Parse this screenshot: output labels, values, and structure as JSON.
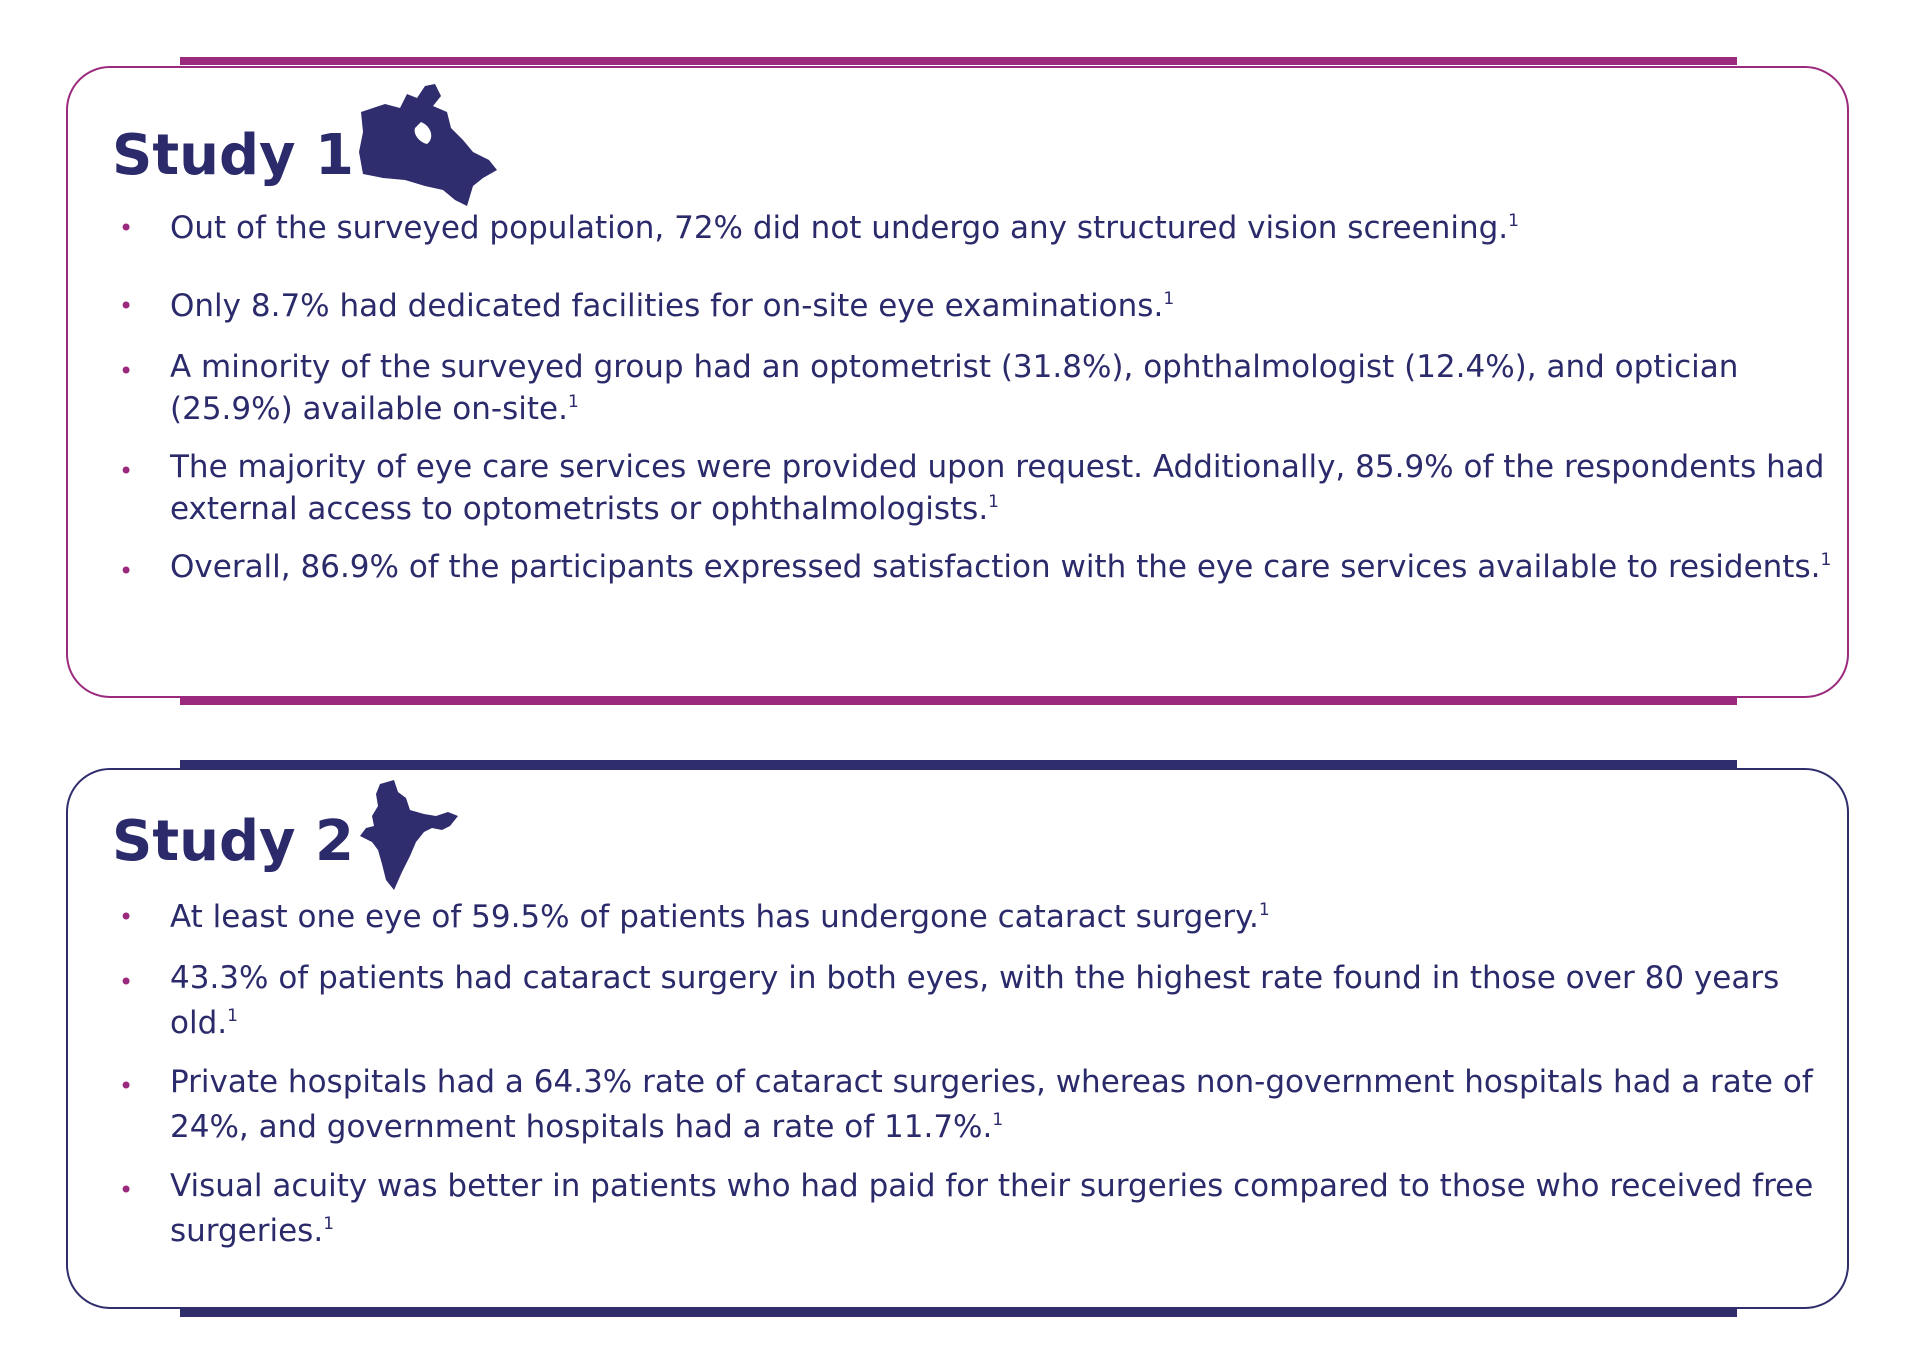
{
  "studies": [
    {
      "title": "Study 1",
      "items": [
        {
          "text": "Out of the surveyed population, 72% did not undergo any structured vision screening.",
          "ref": "1"
        },
        {
          "text": "Only 8.7% had dedicated facilities for on-site eye examinations.",
          "ref": "1"
        },
        {
          "text": "A minority of the surveyed group had an optometrist (31.8%), ophthalmologist (12.4%), and optician (25.9%) available on-site.",
          "ref": "1"
        },
        {
          "text": "The majority of eye care services were provided upon request. Additionally, 85.9% of the respondents had external access to optometrists or ophthalmologists.",
          "ref": "1"
        },
        {
          "text": "Overall, 86.9% of the participants expressed satisfaction with the eye care services available to residents.",
          "ref": "1"
        }
      ]
    },
    {
      "title": "Study 2",
      "items": [
        {
          "text": "At least one eye of 59.5% of patients has undergone cataract surgery.",
          "ref": "1"
        },
        {
          "text": "43.3% of patients had cataract surgery in both eyes, with the highest rate found in those over 80 years old.",
          "ref": "1"
        },
        {
          "text": "Private hospitals had a 64.3% rate of cataract surgeries, whereas non-government hospitals had a rate of 24%, and government hospitals had a rate of 11.7%.",
          "ref": "1"
        },
        {
          "text": "Visual acuity was better in patients who had paid for their surgeries compared to those who received free surgeries.",
          "ref": "1"
        }
      ]
    }
  ]
}
